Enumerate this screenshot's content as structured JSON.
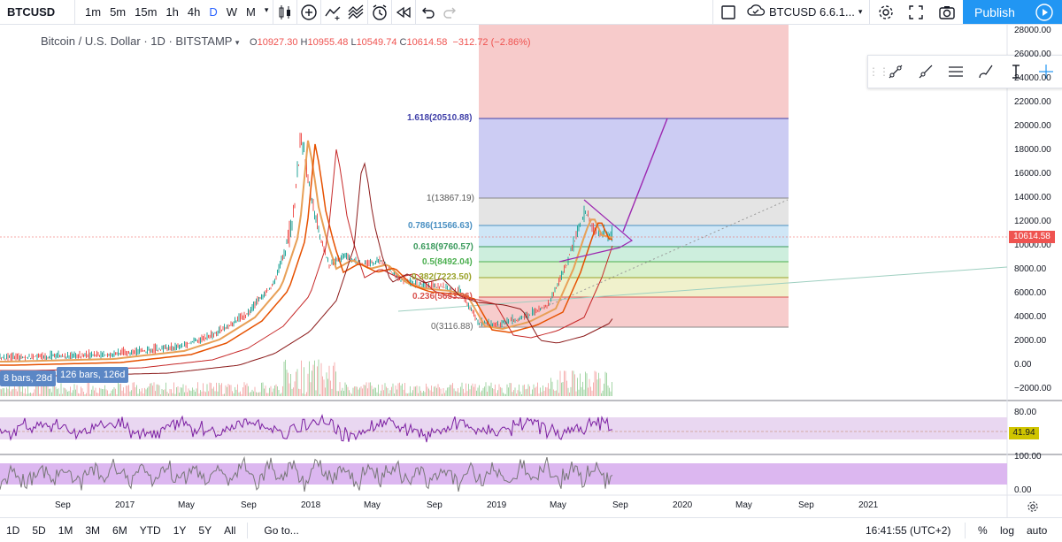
{
  "toolbar": {
    "symbol": "BTCUSD",
    "intervals": [
      "1m",
      "5m",
      "15m",
      "1h",
      "4h",
      "D",
      "W",
      "M"
    ],
    "active_interval": "D",
    "pair_label": "BTCUSD 6.6.1...",
    "publish_label": "Publish"
  },
  "legend": {
    "title": "Bitcoin / U.S. Dollar · 1D · BITSTAMP",
    "open": "10927.30",
    "high": "10955.48",
    "low": "10549.74",
    "close": "10614.58",
    "change": "−312.72 (−2.86%)"
  },
  "price_axis": [
    "28000.00",
    "26000.00",
    "24000.00",
    "22000.00",
    "20000.00",
    "18000.00",
    "16000.00",
    "14000.00",
    "12000.00",
    "10000.00",
    "8000.00",
    "6000.00",
    "4000.00",
    "2000.00",
    "0.00",
    "−2000.00"
  ],
  "last_price": "10614.58",
  "rsi_axis": [
    "80.00",
    "41.94"
  ],
  "stoch_axis": [
    "100.00",
    "0.00"
  ],
  "time_axis": [
    "Sep",
    "2017",
    "May",
    "Sep",
    "2018",
    "May",
    "Sep",
    "2019",
    "May",
    "Sep",
    "2020",
    "May",
    "Sep",
    "2021"
  ],
  "fib": [
    {
      "label": "1.618(20510.88)",
      "color": "#3f3fa8"
    },
    {
      "label": "1(13867.19)",
      "color": "#555555"
    },
    {
      "label": "0.786(11566.63)",
      "color": "#4a90c2"
    },
    {
      "label": "0.618(9760.57)",
      "color": "#3a9a5c"
    },
    {
      "label": "0.5(8492.04)",
      "color": "#4caf50"
    },
    {
      "label": "0.382(7223.50)",
      "color": "#9aa22a"
    },
    {
      "label": "0.236(5653.96)",
      "color": "#d9534f"
    },
    {
      "label": "0(3116.88)",
      "color": "#666666"
    }
  ],
  "bar_labels": [
    "8 bars, 28d",
    "126 bars, 126d"
  ],
  "bottom": {
    "ranges": [
      "1D",
      "5D",
      "1M",
      "3M",
      "6M",
      "YTD",
      "1Y",
      "5Y",
      "All"
    ],
    "goto": "Go to...",
    "time": "16:41:55 (UTC+2)",
    "percent": "%",
    "log": "log",
    "auto": "auto"
  },
  "colors": {
    "accent": "#2196f3",
    "up": "#26a69a",
    "down": "#ef5350",
    "rsi": "#7b1fa2"
  },
  "icons": [
    "candles-icon",
    "plus-circle-icon",
    "indicators-icon",
    "templates-icon",
    "alert-clock-icon",
    "replay-icon",
    "undo-icon",
    "redo-icon",
    "square-icon",
    "cloud-icon",
    "gear-icon",
    "fullscreen-icon",
    "camera-icon",
    "play-icon"
  ]
}
